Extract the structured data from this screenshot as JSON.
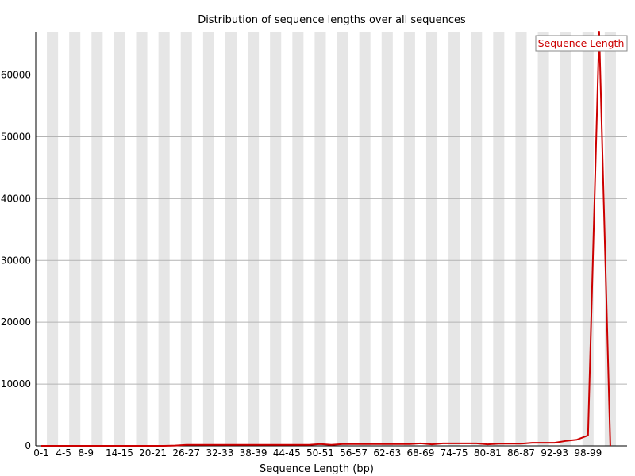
{
  "chart_data": {
    "type": "line",
    "title": "Distribution of sequence lengths over all sequences",
    "xlabel": "Sequence Length (bp)",
    "ylabel": "",
    "ylim": [
      0,
      67000
    ],
    "yticks": [
      0,
      10000,
      20000,
      30000,
      40000,
      50000,
      60000
    ],
    "grid": true,
    "legend_position": "top-right",
    "categories": [
      "0-1",
      "2-3",
      "4-5",
      "6-7",
      "8-9",
      "10-11",
      "12-13",
      "14-15",
      "16-17",
      "18-19",
      "20-21",
      "22-23",
      "24-25",
      "26-27",
      "28-29",
      "30-31",
      "32-33",
      "34-35",
      "36-37",
      "38-39",
      "40-41",
      "42-43",
      "44-45",
      "46-47",
      "48-49",
      "50-51",
      "52-53",
      "54-55",
      "56-57",
      "58-59",
      "60-61",
      "62-63",
      "64-65",
      "66-67",
      "68-69",
      "70-71",
      "72-73",
      "74-75",
      "76-77",
      "78-79",
      "80-81",
      "82-83",
      "84-85",
      "86-87",
      "88-89",
      "90-91",
      "92-93",
      "94-95",
      "96-97",
      "98-99",
      "100",
      "101"
    ],
    "category_labels": [
      "0-1",
      "4-5",
      "8-9",
      "14-15",
      "20-21",
      "26-27",
      "32-33",
      "38-39",
      "44-45",
      "50-51",
      "56-57",
      "62-63",
      "68-69",
      "74-75",
      "80-81",
      "86-87",
      "92-93",
      "98-99"
    ],
    "series": [
      {
        "name": "Sequence Length",
        "color": "#cc0000",
        "values": [
          0,
          0,
          0,
          0,
          0,
          0,
          0,
          0,
          0,
          0,
          0,
          0,
          50,
          150,
          150,
          150,
          150,
          150,
          150,
          150,
          150,
          150,
          150,
          150,
          150,
          300,
          150,
          300,
          300,
          300,
          300,
          300,
          300,
          300,
          400,
          250,
          400,
          400,
          400,
          400,
          250,
          350,
          350,
          350,
          500,
          500,
          500,
          800,
          1000,
          1700,
          67000,
          0
        ]
      }
    ]
  }
}
